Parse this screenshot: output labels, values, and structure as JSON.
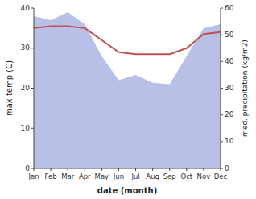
{
  "chart_data": {
    "type": "line",
    "categories": [
      "Jan",
      "Feb",
      "Mar",
      "Apr",
      "May",
      "Jun",
      "Jul",
      "Aug",
      "Sep",
      "Oct",
      "Nov",
      "Dec"
    ],
    "series": [
      {
        "type": "area",
        "axis": "y2",
        "color": "#b8c0e8",
        "values": [
          57,
          55.5,
          58.5,
          54,
          42,
          33,
          35,
          32,
          31.5,
          42,
          52.5,
          54
        ]
      },
      {
        "type": "line",
        "color": "#c0504d",
        "values": [
          35,
          35.5,
          35.5,
          35,
          32,
          29,
          28.5,
          28.5,
          28.5,
          30,
          33.5,
          34
        ]
      }
    ],
    "xlabel": "date (month)",
    "ylabel": "max temp (C)",
    "y2label": "med. precipitation (kg/m2)",
    "ylim": [
      0,
      40
    ],
    "yticks": [
      0,
      10,
      20,
      30,
      40
    ],
    "y2lim": [
      0,
      60
    ],
    "y2ticks": [
      0,
      10,
      20,
      30,
      40,
      50,
      60
    ]
  }
}
